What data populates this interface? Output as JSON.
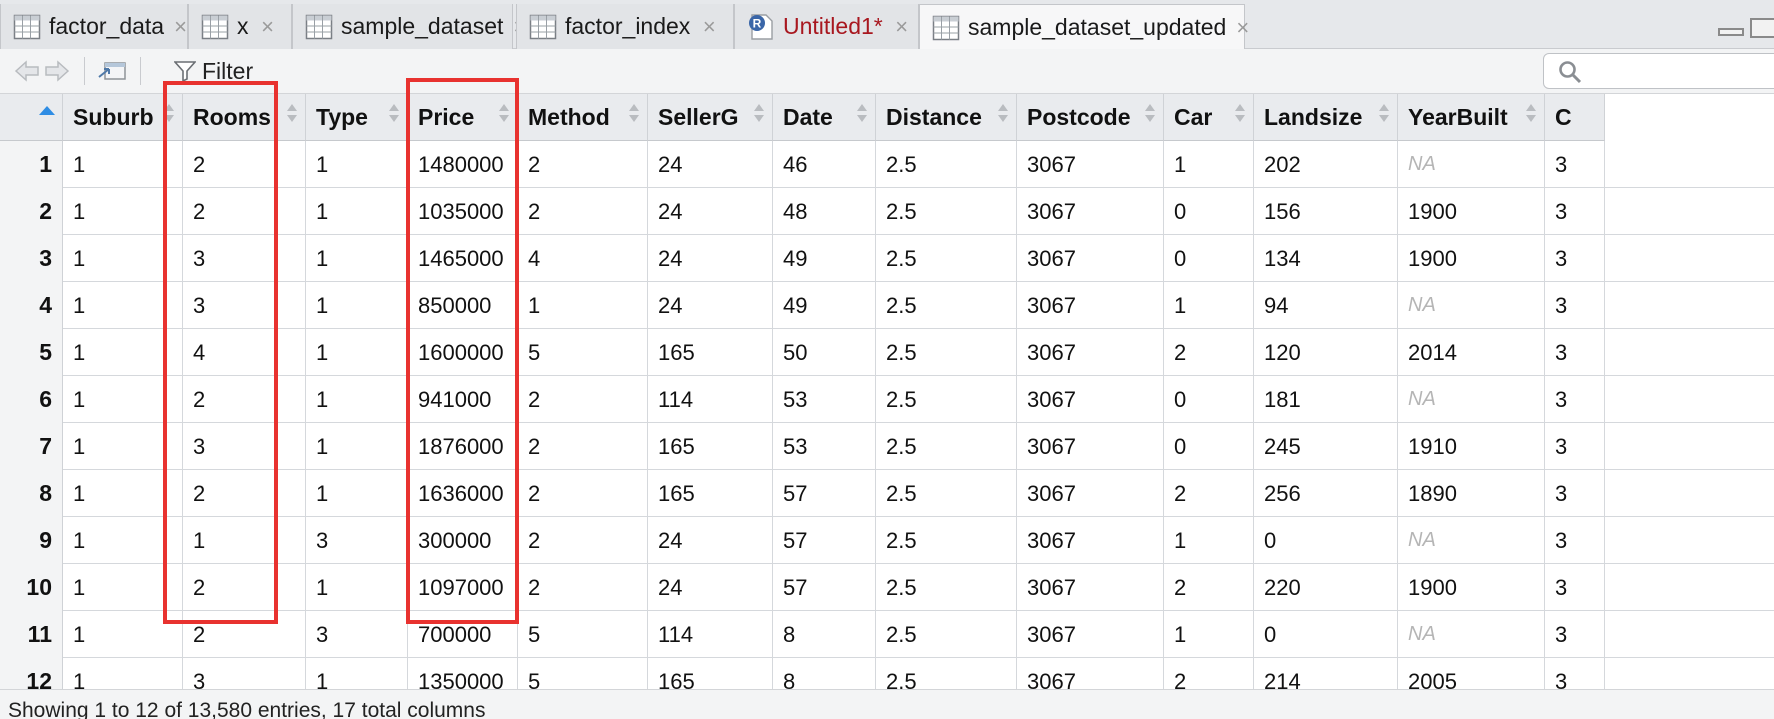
{
  "tabs": [
    {
      "label": "factor_data",
      "icon": "table-icon",
      "close": "×",
      "dirty": false,
      "active": false
    },
    {
      "label": "x",
      "icon": "table-icon",
      "close": "×",
      "dirty": false,
      "active": false
    },
    {
      "label": "sample_dataset",
      "icon": "table-icon",
      "close": "×",
      "dirty": false,
      "active": false
    },
    {
      "label": "factor_index",
      "icon": "table-icon",
      "close": "×",
      "dirty": false,
      "active": false
    },
    {
      "label": "Untitled1*",
      "icon": "r-script-icon",
      "close": "×",
      "dirty": true,
      "active": false
    },
    {
      "label": "sample_dataset_updated",
      "icon": "table-icon",
      "close": "×",
      "dirty": false,
      "active": true
    }
  ],
  "toolbar": {
    "filter_label": "Filter",
    "search_placeholder": ""
  },
  "columns": [
    "Suburb",
    "Rooms",
    "Type",
    "Price",
    "Method",
    "SellerG",
    "Date",
    "Distance",
    "Postcode",
    "Car",
    "Landsize",
    "YearBuilt",
    "C"
  ],
  "rows": [
    {
      "num": "1",
      "cells": [
        "1",
        "2",
        "1",
        "1480000",
        "2",
        "24",
        "46",
        "2.5",
        "3067",
        "1",
        "202",
        "NA",
        "3"
      ]
    },
    {
      "num": "2",
      "cells": [
        "1",
        "2",
        "1",
        "1035000",
        "2",
        "24",
        "48",
        "2.5",
        "3067",
        "0",
        "156",
        "1900",
        "3"
      ]
    },
    {
      "num": "3",
      "cells": [
        "1",
        "3",
        "1",
        "1465000",
        "4",
        "24",
        "49",
        "2.5",
        "3067",
        "0",
        "134",
        "1900",
        "3"
      ]
    },
    {
      "num": "4",
      "cells": [
        "1",
        "3",
        "1",
        "850000",
        "1",
        "24",
        "49",
        "2.5",
        "3067",
        "1",
        "94",
        "NA",
        "3"
      ]
    },
    {
      "num": "5",
      "cells": [
        "1",
        "4",
        "1",
        "1600000",
        "5",
        "165",
        "50",
        "2.5",
        "3067",
        "2",
        "120",
        "2014",
        "3"
      ]
    },
    {
      "num": "6",
      "cells": [
        "1",
        "2",
        "1",
        "941000",
        "2",
        "114",
        "53",
        "2.5",
        "3067",
        "0",
        "181",
        "NA",
        "3"
      ]
    },
    {
      "num": "7",
      "cells": [
        "1",
        "3",
        "1",
        "1876000",
        "2",
        "165",
        "53",
        "2.5",
        "3067",
        "0",
        "245",
        "1910",
        "3"
      ]
    },
    {
      "num": "8",
      "cells": [
        "1",
        "2",
        "1",
        "1636000",
        "2",
        "165",
        "57",
        "2.5",
        "3067",
        "2",
        "256",
        "1890",
        "3"
      ]
    },
    {
      "num": "9",
      "cells": [
        "1",
        "1",
        "3",
        "300000",
        "2",
        "24",
        "57",
        "2.5",
        "3067",
        "1",
        "0",
        "NA",
        "3"
      ]
    },
    {
      "num": "10",
      "cells": [
        "1",
        "2",
        "1",
        "1097000",
        "2",
        "24",
        "57",
        "2.5",
        "3067",
        "2",
        "220",
        "1900",
        "3"
      ]
    },
    {
      "num": "11",
      "cells": [
        "1",
        "2",
        "3",
        "700000",
        "5",
        "114",
        "8",
        "2.5",
        "3067",
        "1",
        "0",
        "NA",
        "3"
      ]
    },
    {
      "num": "12",
      "cells": [
        "1",
        "3",
        "1",
        "1350000",
        "5",
        "165",
        "8",
        "2.5",
        "3067",
        "2",
        "214",
        "2005",
        "3"
      ]
    }
  ],
  "status": "Showing 1 to 12 of 13,580 entries, 17 total columns",
  "colors": {
    "highlight": "#e8322f",
    "dirty_tab_text": "#a8171f",
    "sort_arrow": "#2f8de4"
  }
}
